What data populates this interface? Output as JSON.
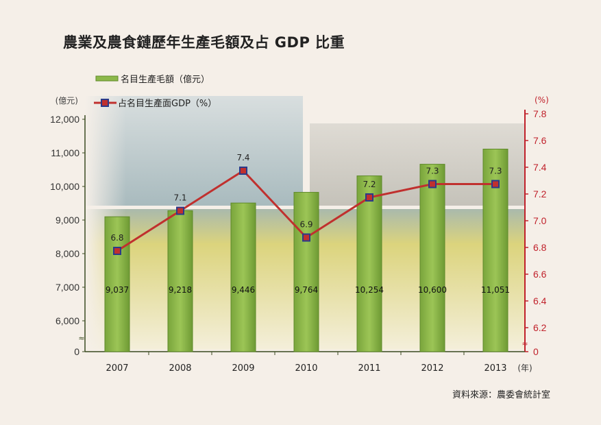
{
  "title": "農業及農食鏈歷年生產毛額及占 GDP 比重",
  "source": "資料來源：農委會統計室",
  "colors": {
    "bar": "#8cb84a",
    "bar_edge": "#5f8a2a",
    "line": "#c0302e",
    "marker": "#2a3a8a",
    "right_axis": "#c0202a",
    "left_axis": "#3a4a20"
  },
  "chart_data": {
    "type": "bar+line",
    "categories": [
      "2007",
      "2008",
      "2009",
      "2010",
      "2011",
      "2012",
      "2013"
    ],
    "x_unit": "(年)",
    "left_axis": {
      "unit": "(億元)",
      "ticks": [
        "0",
        "6,000",
        "7,000",
        "8,000",
        "9,000",
        "10,000",
        "11,000",
        "12,000"
      ],
      "range": [
        6000,
        12000
      ],
      "broken": true
    },
    "right_axis": {
      "unit": "(%)",
      "ticks": [
        "0",
        "6.2",
        "6.4",
        "6.6",
        "6.8",
        "7.0",
        "7.2",
        "7.4",
        "7.6",
        "7.8"
      ],
      "range": [
        6.2,
        7.8
      ],
      "broken": true
    },
    "series": [
      {
        "name": "名目生產毛額（億元）",
        "type": "bar",
        "axis": "left",
        "values": [
          9037,
          9218,
          9446,
          9764,
          10254,
          10600,
          11051
        ],
        "labels": [
          "9,037",
          "9,218",
          "9,446",
          "9,764",
          "10,254",
          "10,600",
          "11,051"
        ]
      },
      {
        "name": "占名目生產面GDP（%）",
        "type": "line",
        "axis": "right",
        "values": [
          6.8,
          7.1,
          7.4,
          6.9,
          7.2,
          7.3,
          7.3
        ],
        "labels": [
          "6.8",
          "7.1",
          "7.4",
          "6.9",
          "7.2",
          "7.3",
          "7.3"
        ]
      }
    ],
    "legend": "top-left"
  }
}
